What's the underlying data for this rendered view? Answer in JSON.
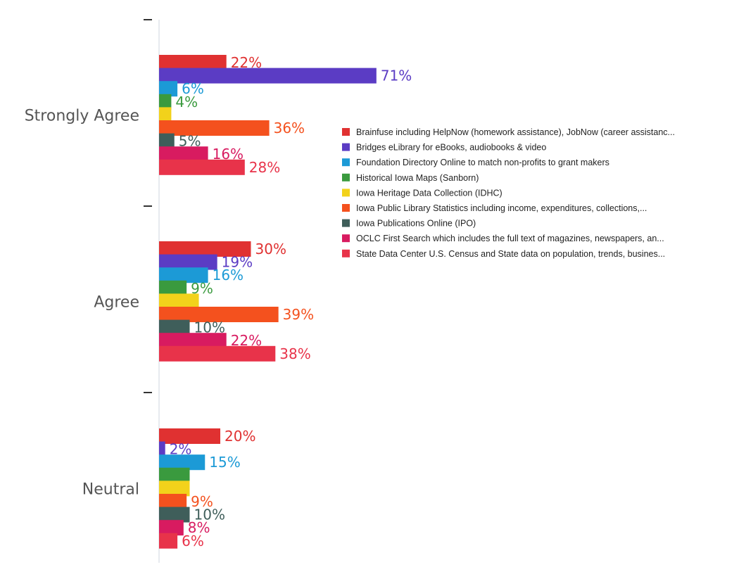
{
  "chart_data": {
    "type": "bar",
    "orientation": "horizontal",
    "categories": [
      "Strongly Agree",
      "Agree",
      "Neutral"
    ],
    "value_suffix": "%",
    "series": [
      {
        "name": "Brainfuse including HelpNow (homework assistance), JobNow (career assistanc...",
        "color": "#e03131",
        "values": [
          22,
          30,
          20
        ]
      },
      {
        "name": "Bridges eLibrary for eBooks, audiobooks & video",
        "color": "#5b3cc4",
        "values": [
          71,
          19,
          2
        ]
      },
      {
        "name": "Foundation Directory Online to match non-profits to grant makers",
        "color": "#1c9ad6",
        "values": [
          6,
          16,
          15
        ]
      },
      {
        "name": "Historical Iowa Maps (Sanborn)",
        "color": "#3a9a3e",
        "values": [
          4,
          9,
          10
        ]
      },
      {
        "name": "Iowa Heritage Data Collection (IDHC)",
        "color": "#f2d21b",
        "values": [
          4,
          13,
          10
        ]
      },
      {
        "name": "Iowa Public Library Statistics including income, expenditures, collections,...",
        "color": "#f4511e",
        "values": [
          36,
          39,
          9
        ]
      },
      {
        "name": "Iowa Publications Online (IPO)",
        "color": "#3f5e5a",
        "values": [
          5,
          10,
          10
        ]
      },
      {
        "name": "OCLC First Search which includes the full text of magazines, newspapers, an...",
        "color": "#d81b60",
        "values": [
          16,
          22,
          8
        ]
      },
      {
        "name": "State Data Center U.S. Census and State data on population, trends, busines...",
        "color": "#e8334a",
        "values": [
          28,
          38,
          6
        ]
      }
    ],
    "value_labels": [
      [
        "22%",
        "71%",
        "6%",
        "4%",
        "",
        "36%",
        "5%",
        "16%",
        "28%"
      ],
      [
        "30%",
        "19%",
        "16%",
        "9%",
        "",
        "39%",
        "10%",
        "22%",
        "38%"
      ],
      [
        "20%",
        "2%",
        "15%",
        "",
        "",
        "9%",
        "10%",
        "8%",
        "6%"
      ]
    ],
    "legend_position": "right",
    "grid": false
  }
}
